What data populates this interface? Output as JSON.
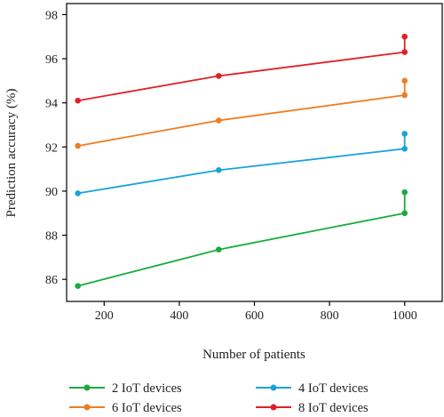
{
  "chart_data": {
    "type": "line",
    "xlabel": "Number of patients",
    "ylabel": "Prediction accuracy (%)",
    "xlim": [
      100,
      1100
    ],
    "ylim": [
      85,
      98.5
    ],
    "xticks": [
      200,
      400,
      600,
      800,
      1000
    ],
    "yticks": [
      86,
      88,
      90,
      92,
      94,
      96,
      98
    ],
    "grid": false,
    "legend_position": "bottom",
    "series": [
      {
        "name": "2 IoT devices",
        "color": "#1aab40",
        "x": [
          130,
          505,
          1000,
          1000
        ],
        "y": [
          85.7,
          87.35,
          89.0,
          89.95
        ]
      },
      {
        "name": "4 IoT devices",
        "color": "#1ba3d9",
        "x": [
          130,
          505,
          1000,
          1000
        ],
        "y": [
          89.9,
          90.95,
          91.92,
          92.6
        ]
      },
      {
        "name": "6 IoT devices",
        "color": "#ef7d22",
        "x": [
          130,
          505,
          1000,
          1000
        ],
        "y": [
          92.05,
          93.2,
          94.35,
          95.0
        ]
      },
      {
        "name": "8 IoT devices",
        "color": "#e02127",
        "x": [
          130,
          505,
          1000,
          1000
        ],
        "y": [
          94.1,
          95.22,
          96.3,
          97.0
        ]
      }
    ]
  }
}
